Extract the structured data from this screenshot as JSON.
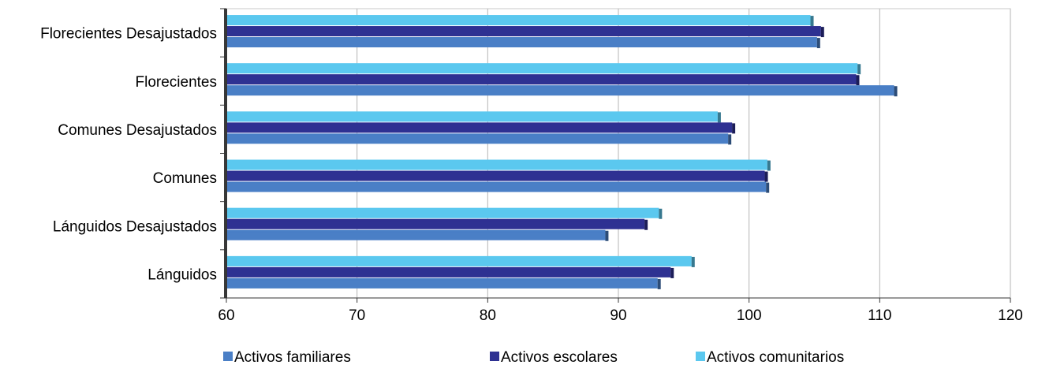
{
  "chart_data": {
    "type": "bar",
    "orientation": "horizontal",
    "title": "",
    "xlabel": "",
    "ylabel": "",
    "xlim": [
      60,
      120
    ],
    "x_ticks": [
      60,
      70,
      80,
      90,
      100,
      110,
      120
    ],
    "grid": "vertical",
    "legend_position": "bottom",
    "categories": [
      "Florecientes Desajustados",
      "Florecientes",
      "Comunes Desajustados",
      "Comunes",
      "Lánguidos Desajustados",
      "Lánguidos"
    ],
    "series": [
      {
        "name": "Activos familiares",
        "color": "#4a7fc6",
        "values": [
          105.2,
          111.1,
          98.4,
          101.3,
          89.0,
          93.0
        ]
      },
      {
        "name": "Activos escolares",
        "color": "#2e3192",
        "values": [
          105.5,
          108.2,
          98.7,
          101.2,
          92.0,
          94.0
        ]
      },
      {
        "name": "Activos comunitarios",
        "color": "#5bc8ef",
        "values": [
          104.7,
          108.3,
          97.6,
          101.4,
          93.1,
          95.6
        ]
      }
    ]
  }
}
